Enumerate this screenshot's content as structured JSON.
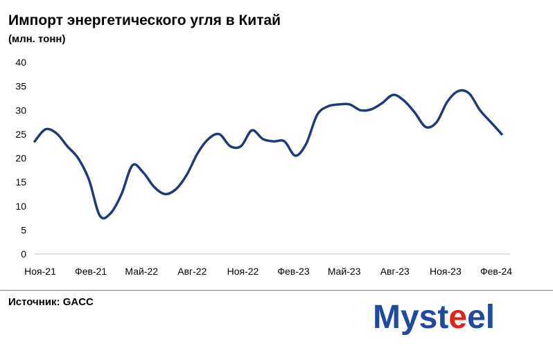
{
  "chart_data": {
    "type": "line",
    "title": "Импорт энергетического угля в Китай",
    "subtitle": "(млн. тонн)",
    "xlabel": "",
    "ylabel": "",
    "ylim": [
      0,
      40
    ],
    "yticks": [
      0,
      5,
      10,
      15,
      20,
      25,
      30,
      35,
      40
    ],
    "grid": false,
    "x_tick_labels": [
      "Ноя-21",
      "Фев-21",
      "Май-22",
      "Авг-22",
      "Ноя-22",
      "Фев-23",
      "Май-23",
      "Авг-23",
      "Ноя-23",
      "Фев-24"
    ],
    "series": [
      {
        "color": "#1f3a7a",
        "values": [
          23.5,
          26.0,
          25.2,
          22.5,
          20.0,
          15.5,
          8.0,
          8.5,
          12.5,
          18.5,
          17.0,
          14.0,
          12.5,
          13.5,
          16.5,
          21.0,
          24.0,
          25.0,
          22.5,
          22.5,
          25.8,
          24.0,
          23.5,
          23.5,
          20.5,
          23.0,
          29.0,
          30.8,
          31.2,
          31.2,
          30.0,
          30.2,
          31.5,
          33.2,
          32.0,
          29.5,
          26.5,
          27.5,
          31.8,
          34.0,
          33.5,
          30.0,
          27.5,
          25.0
        ]
      }
    ]
  },
  "source": "Источник: GACC",
  "logo": {
    "text_main": "Myst",
    "text_accent": "e",
    "text_end": "el",
    "colors": {
      "main": "#1f4aa0",
      "accent": "#e2231a",
      "line": "#1f3a7a"
    }
  }
}
